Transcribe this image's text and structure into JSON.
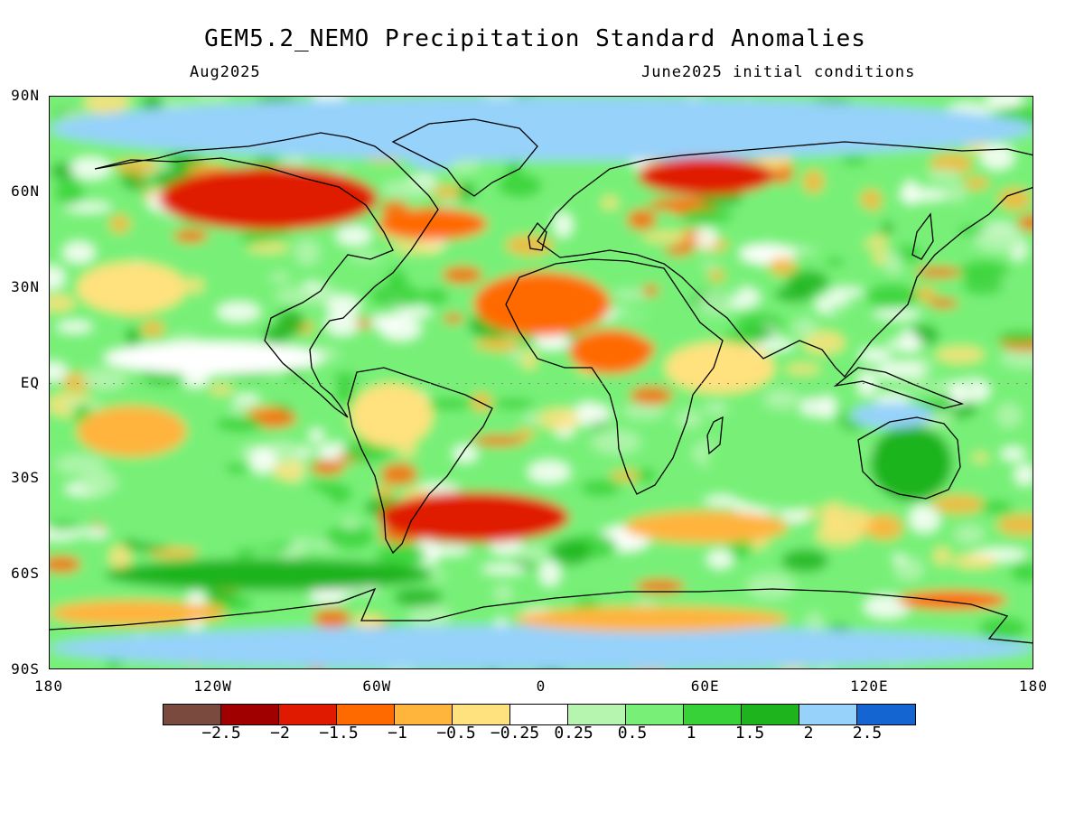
{
  "header": {
    "title": "GEM5.2_NEMO Precipitation Standard Anomalies",
    "valid_month": "Aug2025",
    "initial_conditions": "June2025 initial conditions"
  },
  "map": {
    "projection": "equirectangular",
    "lon_range": [
      -180,
      180
    ],
    "lat_range": [
      -90,
      90
    ],
    "lat_labels": [
      {
        "lat": 90,
        "text": "90N"
      },
      {
        "lat": 60,
        "text": "60N"
      },
      {
        "lat": 30,
        "text": "30N"
      },
      {
        "lat": 0,
        "text": "EQ"
      },
      {
        "lat": -30,
        "text": "30S"
      },
      {
        "lat": -60,
        "text": "60S"
      },
      {
        "lat": -90,
        "text": "90S"
      }
    ],
    "lon_labels": [
      {
        "lon": -180,
        "text": "180"
      },
      {
        "lon": -120,
        "text": "120W"
      },
      {
        "lon": -60,
        "text": "60W"
      },
      {
        "lon": 0,
        "text": "0"
      },
      {
        "lon": 60,
        "text": "60E"
      },
      {
        "lon": 120,
        "text": "120E"
      },
      {
        "lon": 180,
        "text": "180"
      }
    ],
    "anomaly_regions": [
      {
        "name": "arctic-ocean-wet",
        "lon": 0,
        "lat": 80,
        "rx": 180,
        "ry": 10,
        "level": 11
      },
      {
        "name": "antarctica-wet",
        "lon": 0,
        "lat": -83,
        "rx": 180,
        "ry": 7,
        "level": 11
      },
      {
        "name": "southern-ocean-wet",
        "lon": -100,
        "lat": -60,
        "rx": 60,
        "ry": 5,
        "level": 10
      },
      {
        "name": "s-pacific-wet",
        "lon": -120,
        "lat": -40,
        "rx": 45,
        "ry": 12,
        "level": 8
      },
      {
        "name": "indian-ocean-wet",
        "lon": 90,
        "lat": -25,
        "rx": 30,
        "ry": 15,
        "level": 8
      },
      {
        "name": "australia-wet",
        "lon": 135,
        "lat": -25,
        "rx": 15,
        "ry": 12,
        "level": 10
      },
      {
        "name": "timor-sea-wet",
        "lon": 128,
        "lat": -10,
        "rx": 15,
        "ry": 4,
        "level": 11
      },
      {
        "name": "greenland-wet",
        "lon": -40,
        "lat": 75,
        "rx": 12,
        "ry": 8,
        "level": 11
      },
      {
        "name": "siberia-dry",
        "lon": 60,
        "lat": 65,
        "rx": 25,
        "ry": 6,
        "level": 2
      },
      {
        "name": "canada-dry",
        "lon": -100,
        "lat": 58,
        "rx": 40,
        "ry": 10,
        "level": 2
      },
      {
        "name": "n-atlantic-dry",
        "lon": -40,
        "lat": 50,
        "rx": 20,
        "ry": 5,
        "level": 3
      },
      {
        "name": "sahara-dry",
        "lon": 0,
        "lat": 25,
        "rx": 25,
        "ry": 10,
        "level": 3
      },
      {
        "name": "central-africa-dry",
        "lon": 25,
        "lat": 10,
        "rx": 15,
        "ry": 7,
        "level": 3
      },
      {
        "name": "s-atlantic-dry",
        "lon": -25,
        "lat": -42,
        "rx": 35,
        "ry": 8,
        "level": 2
      },
      {
        "name": "s-indian-dry",
        "lon": 60,
        "lat": -45,
        "rx": 30,
        "ry": 5,
        "level": 4
      },
      {
        "name": "ross-sea-dry",
        "lon": -150,
        "lat": -72,
        "rx": 30,
        "ry": 4,
        "level": 4
      },
      {
        "name": "weddell-dry",
        "lon": 40,
        "lat": -74,
        "rx": 50,
        "ry": 4,
        "level": 4
      },
      {
        "name": "e-antarctic-dry",
        "lon": 150,
        "lat": -68,
        "rx": 20,
        "ry": 3,
        "level": 3
      },
      {
        "name": "ne-pacific-dry",
        "lon": -150,
        "lat": 30,
        "rx": 20,
        "ry": 8,
        "level": 5
      },
      {
        "name": "s-pacific-dry",
        "lon": -150,
        "lat": -15,
        "rx": 20,
        "ry": 8,
        "level": 4
      },
      {
        "name": "s-america-dry",
        "lon": -55,
        "lat": -10,
        "rx": 15,
        "ry": 10,
        "level": 5
      },
      {
        "name": "indian-ocean-dry",
        "lon": 65,
        "lat": 5,
        "rx": 20,
        "ry": 8,
        "level": 5
      },
      {
        "name": "equatorial-pacific-neutral",
        "lon": -120,
        "lat": 8,
        "rx": 40,
        "ry": 5,
        "level": 6
      },
      {
        "name": "siberia-wet",
        "lon": 100,
        "lat": 50,
        "rx": 25,
        "ry": 8,
        "level": 8
      },
      {
        "name": "tropical-atlantic-wet",
        "lon": -25,
        "lat": 5,
        "rx": 15,
        "ry": 6,
        "level": 8
      }
    ]
  },
  "colorbar": {
    "levels": [
      {
        "color": "#7b4a3f"
      },
      {
        "color": "#a00000"
      },
      {
        "color": "#e01a00"
      },
      {
        "color": "#ff6a00"
      },
      {
        "color": "#ffb43c"
      },
      {
        "color": "#ffe17d"
      },
      {
        "color": "#ffffff"
      },
      {
        "color": "#b5f5b0"
      },
      {
        "color": "#78f078"
      },
      {
        "color": "#37d237"
      },
      {
        "color": "#1eb41e"
      },
      {
        "color": "#96d2fa"
      },
      {
        "color": "#1464d2"
      }
    ],
    "tick_labels": [
      "−2.5",
      "−2",
      "−1.5",
      "−1",
      "−0.5",
      "−0.25",
      "0.25",
      "0.5",
      "1",
      "1.5",
      "2",
      "2.5"
    ]
  }
}
